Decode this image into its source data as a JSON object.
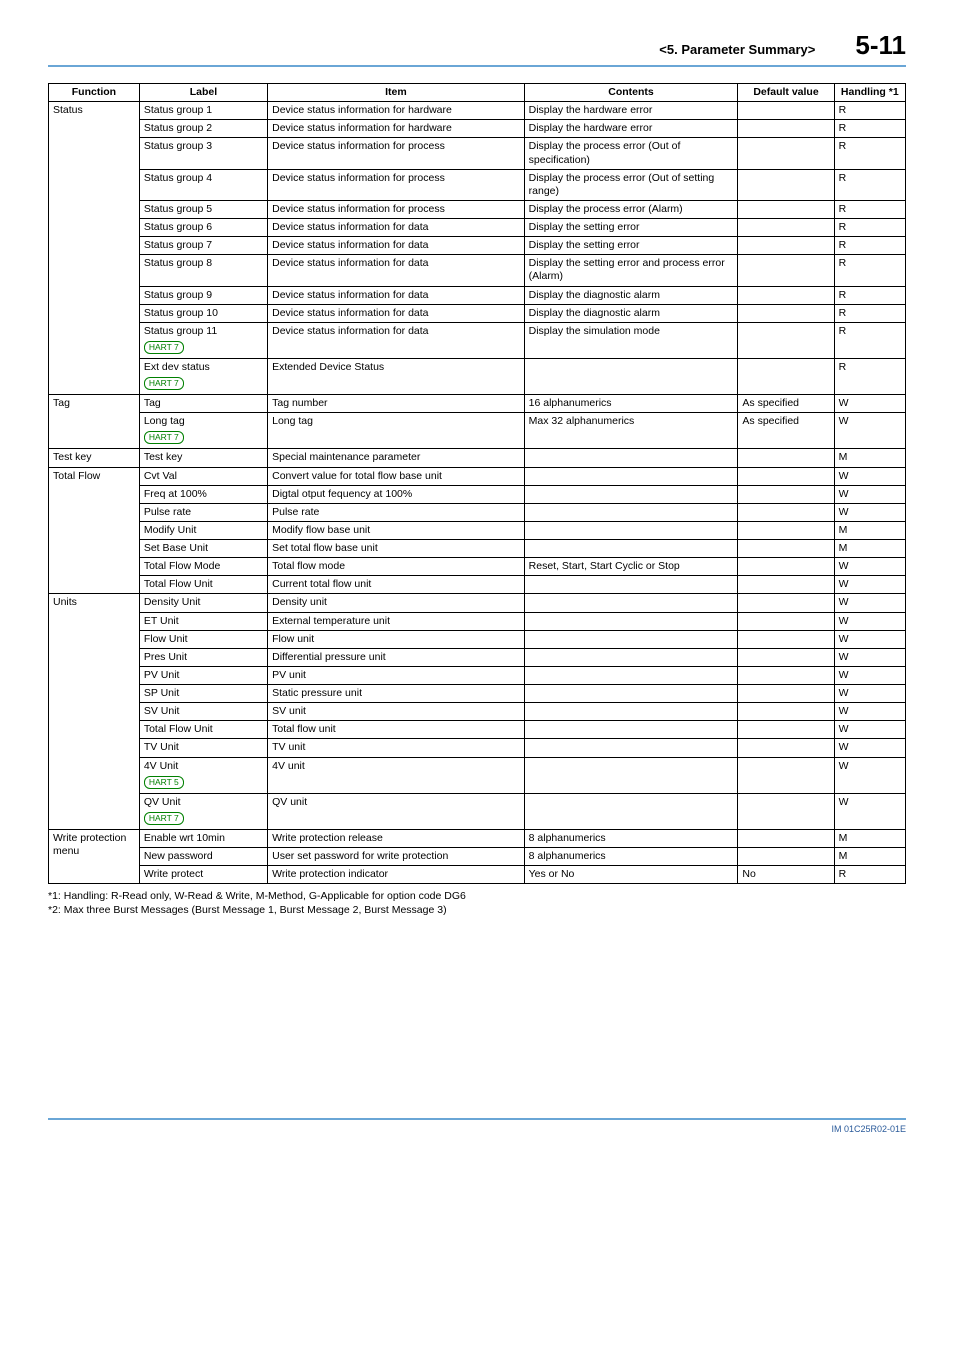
{
  "header": {
    "section": "<5.  Parameter Summary>",
    "pageNumber": "5-11"
  },
  "columns": [
    "Function",
    "Label",
    "Item",
    "Contents",
    "Default value",
    "Handling *1"
  ],
  "groups": [
    {
      "function": "Status",
      "rows": [
        {
          "label": "Status group 1",
          "item": "Device status information for hardware",
          "contents": "Display the hardware error",
          "default": "",
          "handling": "R"
        },
        {
          "label": "Status group 2",
          "item": "Device status information for hardware",
          "contents": "Display the hardware error",
          "default": "",
          "handling": "R"
        },
        {
          "label": "Status group 3",
          "item": "Device status information for process",
          "contents": "Display the process error (Out of specification)",
          "default": "",
          "handling": "R"
        },
        {
          "label": "Status group 4",
          "item": "Device status information for process",
          "contents": "Display the process error (Out of setting range)",
          "default": "",
          "handling": "R"
        },
        {
          "label": "Status group 5",
          "item": "Device status information for process",
          "contents": "Display the process error (Alarm)",
          "default": "",
          "handling": "R"
        },
        {
          "label": "Status group 6",
          "item": "Device status information for data",
          "contents": "Display the setting error",
          "default": "",
          "handling": "R"
        },
        {
          "label": "Status group 7",
          "item": "Device status information for data",
          "contents": "Display the setting error",
          "default": "",
          "handling": "R"
        },
        {
          "label": "Status group 8",
          "item": "Device status information for data",
          "contents": "Display the setting error and process error (Alarm)",
          "default": "",
          "handling": "R"
        },
        {
          "label": "Status group 9",
          "item": "Device status information for data",
          "contents": "Display the diagnostic alarm",
          "default": "",
          "handling": "R"
        },
        {
          "label": "Status group 10",
          "item": "Device status information for data",
          "contents": "Display the diagnostic alarm",
          "default": "",
          "handling": "R"
        },
        {
          "label": "Status group 11",
          "badge": "HART 7",
          "item": "Device status information for data",
          "contents": "Display the simulation mode",
          "default": "",
          "handling": "R"
        },
        {
          "label": "Ext dev status",
          "badge": "HART 7",
          "item": "Extended Device Status",
          "contents": "",
          "default": "",
          "handling": "R"
        }
      ]
    },
    {
      "function": "Tag",
      "rows": [
        {
          "label": "Tag",
          "item": "Tag number",
          "contents": "16 alphanumerics",
          "default": "As specified",
          "handling": "W"
        },
        {
          "label": "Long tag",
          "badge": "HART 7",
          "item": "Long tag",
          "contents": "Max 32 alphanumerics",
          "default": "As specified",
          "handling": "W"
        }
      ]
    },
    {
      "function": "Test key",
      "rows": [
        {
          "label": "Test key",
          "item": "Special maintenance parameter",
          "contents": "",
          "default": "",
          "handling": "M"
        }
      ]
    },
    {
      "function": "Total Flow",
      "rows": [
        {
          "label": "Cvt Val",
          "item": "Convert value for total flow base unit",
          "contents": "",
          "default": "",
          "handling": "W"
        },
        {
          "label": "Freq at 100%",
          "item": "Digtal otput fequency at 100%",
          "contents": "",
          "default": "",
          "handling": "W"
        },
        {
          "label": "Pulse rate",
          "item": "Pulse rate",
          "contents": "",
          "default": "",
          "handling": "W"
        },
        {
          "label": "Modify Unit",
          "item": "Modify flow base unit",
          "contents": "",
          "default": "",
          "handling": "M"
        },
        {
          "label": "Set Base Unit",
          "item": "Set total flow base unit",
          "contents": "",
          "default": "",
          "handling": "M"
        },
        {
          "label": "Total Flow Mode",
          "item": "Total flow mode",
          "contents": "Reset, Start, Start Cyclic or Stop",
          "default": "",
          "handling": "W"
        },
        {
          "label": "Total Flow Unit",
          "item": "Current total flow unit",
          "contents": "",
          "default": "",
          "handling": "W"
        }
      ]
    },
    {
      "function": "Units",
      "rows": [
        {
          "label": "Density Unit",
          "item": "Density unit",
          "contents": "",
          "default": "",
          "handling": "W"
        },
        {
          "label": "ET Unit",
          "item": "External temperature unit",
          "contents": "",
          "default": "",
          "handling": "W"
        },
        {
          "label": "Flow Unit",
          "item": "Flow unit",
          "contents": "",
          "default": "",
          "handling": "W"
        },
        {
          "label": "Pres Unit",
          "item": "Differential pressure unit",
          "contents": "",
          "default": "",
          "handling": "W"
        },
        {
          "label": "PV Unit",
          "item": "PV unit",
          "contents": "",
          "default": "",
          "handling": "W"
        },
        {
          "label": "SP Unit",
          "item": "Static pressure unit",
          "contents": "",
          "default": "",
          "handling": "W"
        },
        {
          "label": "SV Unit",
          "item": "SV unit",
          "contents": "",
          "default": "",
          "handling": "W"
        },
        {
          "label": "Total Flow Unit",
          "item": "Total flow unit",
          "contents": "",
          "default": "",
          "handling": "W"
        },
        {
          "label": "TV Unit",
          "item": "TV unit",
          "contents": "",
          "default": "",
          "handling": "W"
        },
        {
          "label": "4V Unit",
          "badge": "HART 5",
          "item": "4V unit",
          "contents": "",
          "default": "",
          "handling": "W"
        },
        {
          "label": "QV Unit",
          "badge": "HART 7",
          "item": "QV unit",
          "contents": "",
          "default": "",
          "handling": "W"
        }
      ]
    },
    {
      "function": "Write protection menu",
      "rows": [
        {
          "label": "Enable wrt 10min",
          "item": "Write protection release",
          "contents": "8 alphanumerics",
          "default": "",
          "handling": "M"
        },
        {
          "label": "New password",
          "item": "User set password for write protection",
          "contents": "8 alphanumerics",
          "default": "",
          "handling": "M"
        },
        {
          "label": "Write protect",
          "item": "Write protection indicator",
          "contents": "Yes or No",
          "default": "No",
          "handling": "R"
        }
      ]
    }
  ],
  "footnotes": {
    "n1": "*1: Handling: R-Read only, W-Read & Write, M-Method, G-Applicable for option code DG6",
    "n2": "*2: Max three Burst Messages (Burst Message 1, Burst Message 2, Burst Message 3)"
  },
  "footer": "IM 01C25R02-01E"
}
